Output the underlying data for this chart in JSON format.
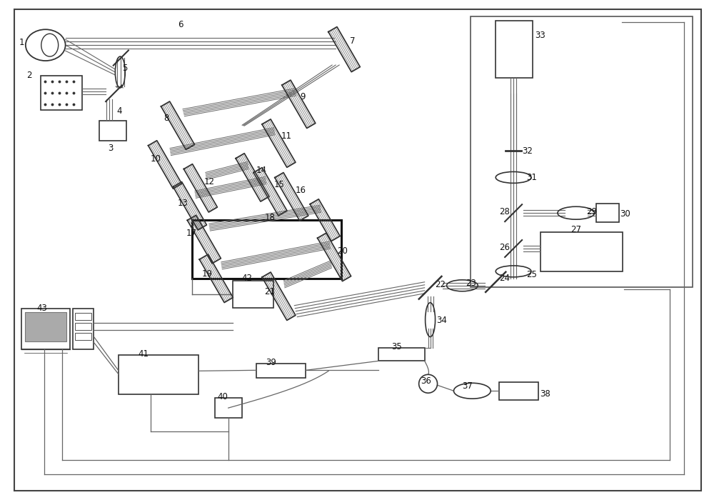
{
  "bg_color": "#ffffff",
  "lc": "#666666",
  "bc": "#333333",
  "figsize": [
    10.0,
    7.0
  ],
  "dpi": 100
}
